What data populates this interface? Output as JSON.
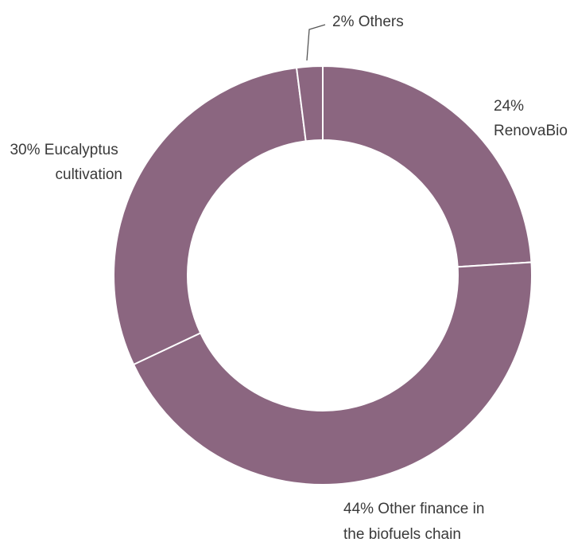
{
  "chart_data": {
    "type": "pie",
    "variant": "donut",
    "title": "",
    "slices": [
      {
        "label": "RenovaBio",
        "value": 24,
        "pct_text": "24%",
        "label_lines": [
          "24%",
          "RenovaBio"
        ]
      },
      {
        "label": "Other finance in the biofuels chain",
        "value": 44,
        "pct_text": "44%",
        "label_lines": [
          "44% Other finance in",
          "the biofuels chain"
        ]
      },
      {
        "label": "Eucalyptus cultivation",
        "value": 30,
        "pct_text": "30%",
        "label_lines": [
          "30% Eucalyptus",
          "cultivation"
        ]
      },
      {
        "label": "Others",
        "value": 2,
        "pct_text": "2%",
        "label_lines": [
          "2% Others"
        ]
      }
    ],
    "colors": {
      "slice": "#8b6680",
      "separator": "#ffffff",
      "text": "#3a3a3a"
    },
    "legend": "none (labels beside slices)"
  }
}
